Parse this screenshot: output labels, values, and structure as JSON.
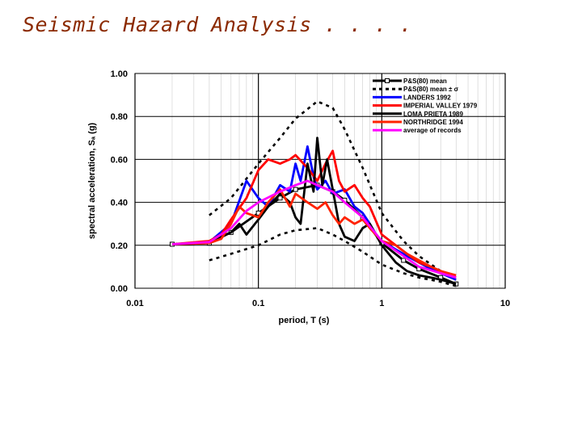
{
  "slide": {
    "title": "Seismic Hazard Analysis . . . ."
  },
  "chart_data": {
    "type": "line",
    "x_scale": "log",
    "xlim": [
      0.01,
      10
    ],
    "ylim": [
      0,
      1.0
    ],
    "grid": true,
    "legend_position": "top-right",
    "xlabel": "period, T (s)",
    "ylabel": "spectral acceleration, Sₐ (g)",
    "x_ticks": [
      "0.01",
      "0.1",
      "1",
      "10"
    ],
    "y_ticks": [
      "0.00",
      "0.20",
      "0.40",
      "0.60",
      "0.80",
      "1.00"
    ],
    "series": [
      {
        "name": "P&S(80) mean",
        "color": "#000000",
        "style": "solid-markers",
        "x": [
          0.02,
          0.04,
          0.06,
          0.1,
          0.15,
          0.2,
          0.3,
          0.4,
          0.5,
          0.7,
          1.0,
          1.5,
          2.0,
          3.0,
          4.0
        ],
        "y": [
          0.205,
          0.21,
          0.26,
          0.35,
          0.42,
          0.46,
          0.48,
          0.45,
          0.41,
          0.33,
          0.21,
          0.13,
          0.09,
          0.05,
          0.02
        ]
      },
      {
        "name": "P&S(80) mean ± σ",
        "color": "#000000",
        "style": "dashed",
        "x": [
          0.04,
          0.06,
          0.1,
          0.15,
          0.2,
          0.3,
          0.4,
          0.5,
          0.7,
          1.0,
          1.5,
          2.0,
          3.0,
          4.0
        ],
        "y": [
          0.34,
          0.42,
          0.58,
          0.7,
          0.79,
          0.87,
          0.84,
          0.74,
          0.56,
          0.35,
          0.22,
          0.15,
          0.08,
          0.04
        ]
      },
      {
        "name": "",
        "color": "#000000",
        "style": "dashed",
        "x": [
          0.04,
          0.06,
          0.1,
          0.15,
          0.2,
          0.3,
          0.4,
          0.5,
          0.7,
          1.0,
          1.5,
          2.0,
          3.0,
          4.0
        ],
        "y": [
          0.13,
          0.16,
          0.2,
          0.25,
          0.27,
          0.28,
          0.25,
          0.22,
          0.17,
          0.11,
          0.07,
          0.05,
          0.03,
          0.01
        ]
      },
      {
        "name": "LANDERS 1992",
        "color": "#0000ff",
        "style": "solid",
        "x": [
          0.02,
          0.04,
          0.06,
          0.08,
          0.1,
          0.12,
          0.15,
          0.18,
          0.2,
          0.22,
          0.25,
          0.28,
          0.3,
          0.35,
          0.4,
          0.5,
          0.6,
          0.7,
          0.8,
          0.9,
          1.0,
          1.3,
          1.6,
          2.0,
          2.5,
          3.0,
          4.0
        ],
        "y": [
          0.205,
          0.215,
          0.3,
          0.5,
          0.42,
          0.38,
          0.48,
          0.45,
          0.58,
          0.5,
          0.66,
          0.52,
          0.46,
          0.5,
          0.44,
          0.46,
          0.38,
          0.35,
          0.3,
          0.25,
          0.22,
          0.18,
          0.15,
          0.12,
          0.09,
          0.07,
          0.04
        ]
      },
      {
        "name": "IMPERIAL VALLEY 1979",
        "color": "#ff0000",
        "style": "solid",
        "x": [
          0.02,
          0.04,
          0.05,
          0.06,
          0.08,
          0.1,
          0.12,
          0.15,
          0.18,
          0.2,
          0.25,
          0.3,
          0.35,
          0.4,
          0.45,
          0.5,
          0.6,
          0.7,
          0.8,
          1.0,
          1.3,
          1.6,
          2.0,
          2.5,
          3.0,
          4.0
        ],
        "y": [
          0.205,
          0.22,
          0.25,
          0.32,
          0.42,
          0.55,
          0.6,
          0.58,
          0.6,
          0.62,
          0.56,
          0.5,
          0.58,
          0.64,
          0.5,
          0.45,
          0.48,
          0.42,
          0.38,
          0.25,
          0.2,
          0.16,
          0.12,
          0.1,
          0.08,
          0.05
        ]
      },
      {
        "name": "LOMA PRIETA 1989",
        "color": "#000000",
        "style": "solid",
        "x": [
          0.02,
          0.04,
          0.05,
          0.06,
          0.07,
          0.08,
          0.1,
          0.12,
          0.15,
          0.18,
          0.2,
          0.22,
          0.25,
          0.28,
          0.3,
          0.33,
          0.36,
          0.4,
          0.45,
          0.5,
          0.6,
          0.7,
          0.8,
          1.0,
          1.3,
          1.6,
          2.0,
          2.5,
          3.0,
          4.0
        ],
        "y": [
          0.205,
          0.21,
          0.24,
          0.26,
          0.3,
          0.25,
          0.32,
          0.38,
          0.44,
          0.4,
          0.33,
          0.3,
          0.58,
          0.45,
          0.7,
          0.48,
          0.6,
          0.46,
          0.3,
          0.24,
          0.22,
          0.28,
          0.3,
          0.2,
          0.12,
          0.08,
          0.06,
          0.05,
          0.04,
          0.02
        ]
      },
      {
        "name": "NORTHRIDGE 1994",
        "color": "#ff2200",
        "style": "solid",
        "x": [
          0.02,
          0.04,
          0.05,
          0.06,
          0.07,
          0.08,
          0.1,
          0.12,
          0.15,
          0.18,
          0.2,
          0.25,
          0.3,
          0.35,
          0.4,
          0.45,
          0.5,
          0.6,
          0.7,
          0.8,
          1.0,
          1.3,
          1.6,
          2.0,
          2.5,
          3.0,
          4.0
        ],
        "y": [
          0.205,
          0.21,
          0.23,
          0.3,
          0.38,
          0.35,
          0.33,
          0.4,
          0.46,
          0.38,
          0.44,
          0.4,
          0.37,
          0.4,
          0.34,
          0.3,
          0.33,
          0.3,
          0.32,
          0.28,
          0.22,
          0.2,
          0.16,
          0.13,
          0.1,
          0.08,
          0.06
        ]
      },
      {
        "name": "average of records",
        "color": "#ff00ff",
        "style": "solid",
        "x": [
          0.02,
          0.04,
          0.06,
          0.08,
          0.1,
          0.15,
          0.2,
          0.25,
          0.3,
          0.4,
          0.5,
          0.7,
          1.0,
          1.5,
          2.0,
          3.0,
          4.0
        ],
        "y": [
          0.205,
          0.215,
          0.28,
          0.36,
          0.4,
          0.45,
          0.48,
          0.5,
          0.48,
          0.45,
          0.4,
          0.33,
          0.22,
          0.15,
          0.1,
          0.07,
          0.05
        ]
      }
    ]
  }
}
